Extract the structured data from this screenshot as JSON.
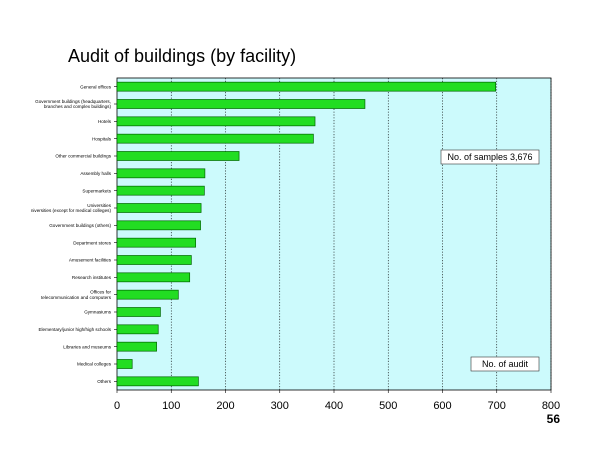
{
  "page_number": "56",
  "colors": {
    "plot_background": "#ccfafc",
    "bar_fill": "#22dd22",
    "bar_stroke": "#006600"
  },
  "chart_data": {
    "type": "bar",
    "orientation": "horizontal",
    "title": "Audit of buildings (by facility)",
    "categories": [
      "General offices",
      "Government buildings (headquarters, branches and complex buildings)",
      "Hotels",
      "Hospitals",
      "Other commercial buildings",
      "Assembly halls",
      "Supermarkets",
      "Universities (except for medical colleges)",
      "Government buildings (others)",
      "Department stores",
      "Amusement facilities",
      "Research institutes",
      "Offices for telecommunication and computers",
      "Gymnasiums",
      "Elementary/junior high/high schools",
      "Libraries and museums",
      "Medical colleges",
      "Others"
    ],
    "values": [
      698,
      457,
      365,
      362,
      225,
      162,
      161,
      155,
      154,
      145,
      137,
      134,
      113,
      80,
      76,
      73,
      28,
      150
    ],
    "xlim": [
      0,
      800
    ],
    "xticks": [
      0,
      100,
      200,
      300,
      400,
      500,
      600,
      700,
      800
    ],
    "grid": "vertical dotted",
    "annotations": [
      "No. of samples 3,676",
      "No. of audit"
    ]
  }
}
